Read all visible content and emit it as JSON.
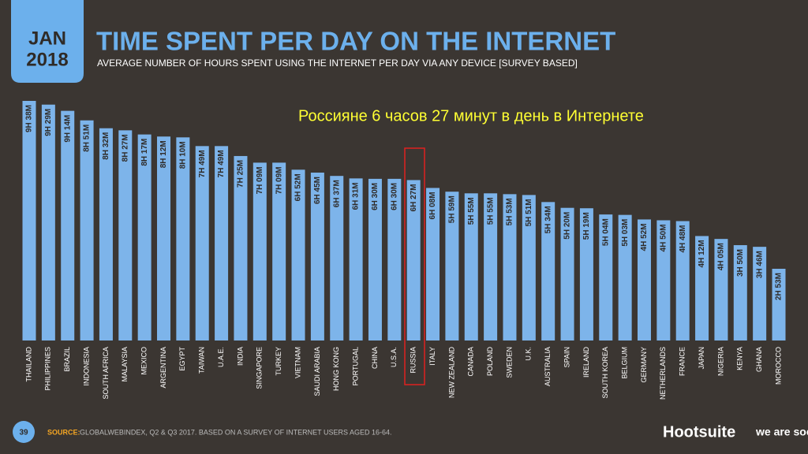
{
  "badge": {
    "month": "JAN",
    "year": "2018"
  },
  "chart_data": {
    "type": "bar",
    "title": "TIME SPENT PER DAY ON THE INTERNET",
    "subtitle": "AVERAGE NUMBER OF HOURS SPENT USING THE INTERNET PER DAY VIA ANY DEVICE [SURVEY BASED]",
    "annotation": "Россияне 6 часов 27 минут в день в Интернете",
    "color": "#7db4ea",
    "categories": [
      "THAILAND",
      "PHILIPPINES",
      "BRAZIL",
      "INDONESIA",
      "SOUTH AFRICA",
      "MALAYSIA",
      "MEXICO",
      "ARGENTINA",
      "EGYPT",
      "TAIWAN",
      "U.A.E.",
      "INDIA",
      "SINGAPORE",
      "TURKEY",
      "VIETNAM",
      "SAUDI ARABIA",
      "HONG KONG",
      "PORTUGAL",
      "CHINA",
      "U.S.A.",
      "RUSSIA",
      "ITALY",
      "NEW ZEALAND",
      "CANADA",
      "POLAND",
      "SWEDEN",
      "U.K.",
      "AUSTRALIA",
      "SPAIN",
      "IRELAND",
      "SOUTH KOREA",
      "BELGIUM",
      "GERMANY",
      "NETHERLANDS",
      "FRANCE",
      "JAPAN",
      "NIGERIA",
      "KENYA",
      "GHANA",
      "MOROCCO"
    ],
    "values": [
      578,
      569,
      554,
      531,
      512,
      507,
      497,
      492,
      490,
      469,
      469,
      445,
      429,
      429,
      412,
      405,
      397,
      391,
      390,
      390,
      387,
      368,
      359,
      355,
      355,
      353,
      351,
      334,
      320,
      319,
      304,
      303,
      292,
      290,
      288,
      252,
      245,
      230,
      226,
      173
    ],
    "value_labels": [
      "9H 38M",
      "9H 29M",
      "9H 14M",
      "8H 51M",
      "8H 32M",
      "8H 27M",
      "8H 17M",
      "8H 12M",
      "8H 10M",
      "7H 49M",
      "7H 49M",
      "7H 25M",
      "7H 09M",
      "7H 09M",
      "6H 52M",
      "6H 45M",
      "6H 37M",
      "6H 31M",
      "6H 30M",
      "6H 30M",
      "6H 27M",
      "6H 08M",
      "5H 59M",
      "5H 55M",
      "5H 55M",
      "5H 53M",
      "5H 51M",
      "5H 34M",
      "5H 20M",
      "5H 19M",
      "5H 04M",
      "5H 03M",
      "4H 52M",
      "4H 50M",
      "4H 48M",
      "4H 12M",
      "4H 05M",
      "3H 50M",
      "3H 46M",
      "2H 53M"
    ]
  },
  "footer": {
    "page_number": 39,
    "source_label": "SOURCE:",
    "source_text": "GLOBALWEBINDEX, Q2 & Q3 2017. BASED ON A SURVEY OF INTERNET USERS AGED 16-64.",
    "brand_1": "Hootsuite",
    "brand_2": "we are social"
  }
}
